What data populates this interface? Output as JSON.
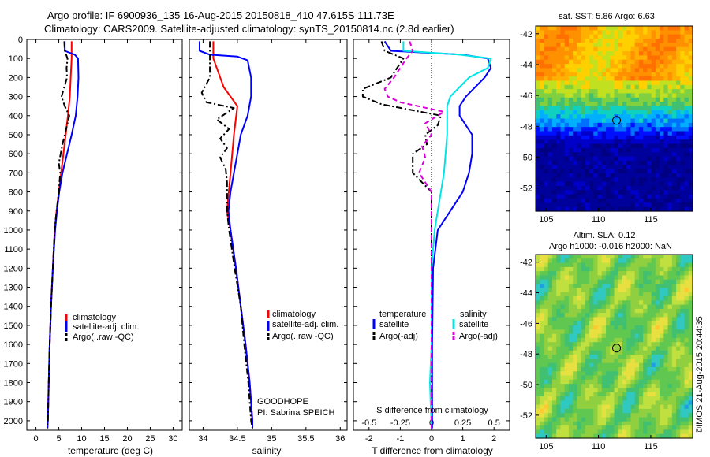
{
  "header": {
    "line1": "Argo profile: IF 6900936_135 16-Aug-2015 20150818_410 47.615S 111.73E",
    "line2": "Climatology: CARS2009. Satellite-adjusted climatology: synTS_20150814.nc (2.8d earlier)"
  },
  "colors": {
    "climatology": "#ff0000",
    "satellite": "#0000ff",
    "argo": "#000000",
    "sal_satellite": "#00e5e5",
    "sal_argo": "#dd00dd"
  },
  "depth_ticks": [
    0,
    100,
    200,
    300,
    400,
    500,
    600,
    700,
    800,
    900,
    1000,
    1100,
    1200,
    1300,
    1400,
    1500,
    1600,
    1700,
    1800,
    1900,
    2000
  ],
  "chart_data": [
    {
      "type": "line",
      "xlabel": "temperature (deg C)",
      "xlim": [
        -2,
        32
      ],
      "ylim": [
        0,
        2050
      ],
      "y_reversed": true,
      "xticks": [
        0,
        5,
        10,
        15,
        20,
        25,
        30
      ],
      "xtick_labels": [
        "0",
        "5",
        "10",
        "15",
        "20",
        "25",
        "30"
      ],
      "legend": [
        "climatology",
        "satellite-adj. clim.",
        "Argo(..raw -QC)"
      ],
      "legend_position": "bottom-center",
      "series": [
        {
          "name": "climatology",
          "style": "solid",
          "color": "#ff0000",
          "points": [
            [
              7.8,
              10
            ],
            [
              7.8,
              100
            ],
            [
              7.6,
              200
            ],
            [
              7.4,
              300
            ],
            [
              7.0,
              400
            ],
            [
              6.5,
              500
            ],
            [
              6.0,
              600
            ],
            [
              5.5,
              700
            ],
            [
              5.0,
              800
            ],
            [
              4.5,
              900
            ],
            [
              4.1,
              1000
            ],
            [
              3.7,
              1200
            ],
            [
              3.3,
              1400
            ],
            [
              3.0,
              1600
            ],
            [
              2.8,
              1800
            ],
            [
              2.6,
              2000
            ],
            [
              2.5,
              2040
            ]
          ]
        },
        {
          "name": "satellite-adj. clim.",
          "style": "solid",
          "color": "#0000ff",
          "points": [
            [
              6.3,
              10
            ],
            [
              6.3,
              60
            ],
            [
              8.5,
              80
            ],
            [
              9.2,
              100
            ],
            [
              9.3,
              200
            ],
            [
              9.1,
              300
            ],
            [
              8.7,
              400
            ],
            [
              7.8,
              500
            ],
            [
              6.8,
              600
            ],
            [
              5.8,
              700
            ],
            [
              5.1,
              800
            ],
            [
              4.6,
              900
            ],
            [
              4.2,
              1000
            ],
            [
              3.7,
              1200
            ],
            [
              3.3,
              1400
            ],
            [
              3.0,
              1600
            ],
            [
              2.8,
              1800
            ],
            [
              2.6,
              2000
            ],
            [
              2.5,
              2040
            ]
          ]
        },
        {
          "name": "Argo(..raw -QC)",
          "style": "dash-dot",
          "color": "#000000",
          "points": [
            [
              6.2,
              10
            ],
            [
              6.3,
              60
            ],
            [
              6.9,
              100
            ],
            [
              6.7,
              150
            ],
            [
              6.8,
              200
            ],
            [
              6.2,
              250
            ],
            [
              5.6,
              300
            ],
            [
              6.3,
              350
            ],
            [
              7.3,
              400
            ],
            [
              6.8,
              450
            ],
            [
              6.3,
              500
            ],
            [
              5.8,
              550
            ],
            [
              5.4,
              600
            ],
            [
              5.0,
              650
            ],
            [
              5.3,
              700
            ],
            [
              5.0,
              800
            ],
            [
              4.5,
              900
            ],
            [
              4.1,
              1000
            ],
            [
              3.7,
              1200
            ],
            [
              3.3,
              1400
            ],
            [
              3.0,
              1600
            ],
            [
              2.8,
              1800
            ],
            [
              2.6,
              2000
            ],
            [
              2.5,
              2040
            ]
          ]
        }
      ]
    },
    {
      "type": "line",
      "xlabel": "salinity",
      "xlim": [
        33.8,
        36.1
      ],
      "ylim": [
        0,
        2050
      ],
      "y_reversed": true,
      "xticks": [
        34,
        34.5,
        35,
        35.5,
        36
      ],
      "xtick_labels": [
        "34",
        "34.5",
        "35",
        "35.5",
        "36"
      ],
      "legend": [
        "climatology",
        "satellite-adj. clim.",
        "Argo(..raw -QC)"
      ],
      "legend_position": "bottom-right",
      "annotations": [
        "GOODHOPE",
        "PI: Sabrina SPEICH"
      ],
      "series": [
        {
          "name": "climatology",
          "style": "solid",
          "color": "#ff0000",
          "points": [
            [
              34.15,
              10
            ],
            [
              34.15,
              100
            ],
            [
              34.2,
              150
            ],
            [
              34.3,
              250
            ],
            [
              34.5,
              350
            ],
            [
              34.45,
              500
            ],
            [
              34.4,
              700
            ],
            [
              34.35,
              900
            ],
            [
              34.4,
              1000
            ],
            [
              34.48,
              1200
            ],
            [
              34.55,
              1400
            ],
            [
              34.62,
              1600
            ],
            [
              34.68,
              1800
            ],
            [
              34.72,
              2000
            ],
            [
              34.72,
              2040
            ]
          ]
        },
        {
          "name": "satellite-adj. clim.",
          "style": "solid",
          "color": "#0000ff",
          "points": [
            [
              33.95,
              10
            ],
            [
              33.95,
              60
            ],
            [
              34.1,
              80
            ],
            [
              34.5,
              90
            ],
            [
              34.65,
              110
            ],
            [
              34.7,
              200
            ],
            [
              34.7,
              300
            ],
            [
              34.65,
              400
            ],
            [
              34.55,
              500
            ],
            [
              34.5,
              600
            ],
            [
              34.45,
              700
            ],
            [
              34.4,
              800
            ],
            [
              34.37,
              900
            ],
            [
              34.4,
              1000
            ],
            [
              34.48,
              1200
            ],
            [
              34.55,
              1400
            ],
            [
              34.62,
              1600
            ],
            [
              34.68,
              1800
            ],
            [
              34.72,
              2000
            ],
            [
              34.72,
              2040
            ]
          ]
        },
        {
          "name": "Argo(..raw -QC)",
          "style": "dash-dot",
          "color": "#000000",
          "points": [
            [
              34.1,
              10
            ],
            [
              34.1,
              100
            ],
            [
              34.1,
              200
            ],
            [
              33.98,
              280
            ],
            [
              34.05,
              330
            ],
            [
              34.45,
              360
            ],
            [
              34.2,
              420
            ],
            [
              34.38,
              470
            ],
            [
              34.25,
              520
            ],
            [
              34.35,
              570
            ],
            [
              34.25,
              620
            ],
            [
              34.33,
              680
            ],
            [
              34.35,
              750
            ],
            [
              34.35,
              900
            ],
            [
              34.38,
              1000
            ],
            [
              34.46,
              1200
            ],
            [
              34.55,
              1400
            ],
            [
              34.6,
              1600
            ],
            [
              34.66,
              1800
            ],
            [
              34.7,
              2000
            ],
            [
              34.72,
              2040
            ]
          ]
        }
      ]
    },
    {
      "type": "line",
      "xlabel": "T difference from climatology",
      "xlim": [
        -2.5,
        2.5
      ],
      "ylim": [
        0,
        2050
      ],
      "y_reversed": true,
      "xticks": [
        -2,
        -1,
        0,
        1,
        2
      ],
      "xtick_labels": [
        "-2",
        "-1",
        "0",
        "1",
        "2"
      ],
      "top_label": "S difference from climatology",
      "top_xtick_labels": [
        "-0.5",
        "-0.25",
        "0",
        "0.25",
        "0.5"
      ],
      "legend_left_title": "temperature",
      "legend_right_title": "salinity",
      "legend_left": [
        "satellite",
        "Argo(-adj)"
      ],
      "legend_right": [
        "satellite",
        "Argo(-adj)"
      ],
      "series": [
        {
          "name": "temperature satellite",
          "style": "solid",
          "color": "#0000ff",
          "points": [
            [
              -1.5,
              10
            ],
            [
              -1.3,
              60
            ],
            [
              1.0,
              80
            ],
            [
              1.8,
              100
            ],
            [
              1.9,
              150
            ],
            [
              1.7,
              200
            ],
            [
              1.1,
              300
            ],
            [
              0.9,
              350
            ],
            [
              0.9,
              400
            ],
            [
              1.3,
              500
            ],
            [
              1.3,
              600
            ],
            [
              1.2,
              700
            ],
            [
              1.0,
              800
            ],
            [
              0.6,
              900
            ],
            [
              0.2,
              1000
            ],
            [
              0.05,
              1200
            ],
            [
              0.02,
              1600
            ],
            [
              0.02,
              2040
            ]
          ]
        },
        {
          "name": "temperature Argo(-adj)",
          "style": "dash-dot",
          "color": "#000000",
          "points": [
            [
              -1.6,
              10
            ],
            [
              -1.5,
              60
            ],
            [
              -0.9,
              100
            ],
            [
              -1.1,
              150
            ],
            [
              -1.3,
              200
            ],
            [
              -2.2,
              260
            ],
            [
              -2.2,
              300
            ],
            [
              -1.6,
              340
            ],
            [
              0.3,
              400
            ],
            [
              0.2,
              450
            ],
            [
              -0.2,
              500
            ],
            [
              -0.15,
              550
            ],
            [
              -0.6,
              600
            ],
            [
              -0.6,
              700
            ],
            [
              0.0,
              800
            ],
            [
              0.0,
              900
            ],
            [
              0.0,
              1000
            ],
            [
              0.0,
              1200
            ],
            [
              0.0,
              1600
            ],
            [
              0.0,
              2040
            ]
          ]
        },
        {
          "name": "salinity satellite",
          "style": "solid",
          "color": "#00e5e5",
          "points": [
            [
              -0.9,
              10
            ],
            [
              -0.9,
              60
            ],
            [
              0.9,
              80
            ],
            [
              1.9,
              100
            ],
            [
              1.8,
              150
            ],
            [
              1.2,
              200
            ],
            [
              0.9,
              250
            ],
            [
              0.6,
              300
            ],
            [
              0.5,
              350
            ],
            [
              0.5,
              400
            ],
            [
              0.5,
              500
            ],
            [
              0.45,
              600
            ],
            [
              0.4,
              700
            ],
            [
              0.3,
              800
            ],
            [
              0.2,
              900
            ],
            [
              0.1,
              1000
            ],
            [
              0.0,
              1200
            ],
            [
              0.0,
              1600
            ],
            [
              -0.05,
              1800
            ],
            [
              0.0,
              2040
            ]
          ]
        },
        {
          "name": "salinity Argo(-adj)",
          "style": "dashed",
          "color": "#dd00dd",
          "points": [
            [
              -0.7,
              10
            ],
            [
              -0.6,
              60
            ],
            [
              -0.8,
              100
            ],
            [
              -1.2,
              200
            ],
            [
              -1.5,
              260
            ],
            [
              -1.4,
              300
            ],
            [
              -1.0,
              330
            ],
            [
              0.4,
              380
            ],
            [
              -0.2,
              440
            ],
            [
              0.0,
              500
            ],
            [
              -0.3,
              560
            ],
            [
              -0.2,
              620
            ],
            [
              -0.4,
              700
            ],
            [
              0.0,
              800
            ],
            [
              0.0,
              900
            ],
            [
              0.0,
              1000
            ],
            [
              0.0,
              1200
            ],
            [
              0.0,
              1600
            ],
            [
              0.0,
              2040
            ]
          ]
        }
      ]
    },
    {
      "type": "heatmap",
      "title": "sat. SST: 5.86 Argo: 6.63",
      "xticks": [
        105,
        110,
        115
      ],
      "yticks": [
        -42,
        -44,
        -46,
        -48,
        -50,
        -52
      ],
      "xlim": [
        104,
        119
      ],
      "ylim": [
        -53.5,
        -41.5
      ],
      "marker": {
        "lon": 111.73,
        "lat": -47.615
      }
    },
    {
      "type": "heatmap",
      "title_line1": "Altim. SLA: 0.12",
      "title_line2": "Argo h1000: -0.016 h2000: NaN",
      "xticks": [
        105,
        110,
        115
      ],
      "yticks": [
        -42,
        -44,
        -46,
        -48,
        -50,
        -52
      ],
      "xlim": [
        104,
        119
      ],
      "ylim": [
        -53.5,
        -41.5
      ],
      "marker": {
        "lon": 111.73,
        "lat": -47.615
      }
    }
  ],
  "footer_stamp": "©IMOS 21-Aug-2015 20:44:35"
}
